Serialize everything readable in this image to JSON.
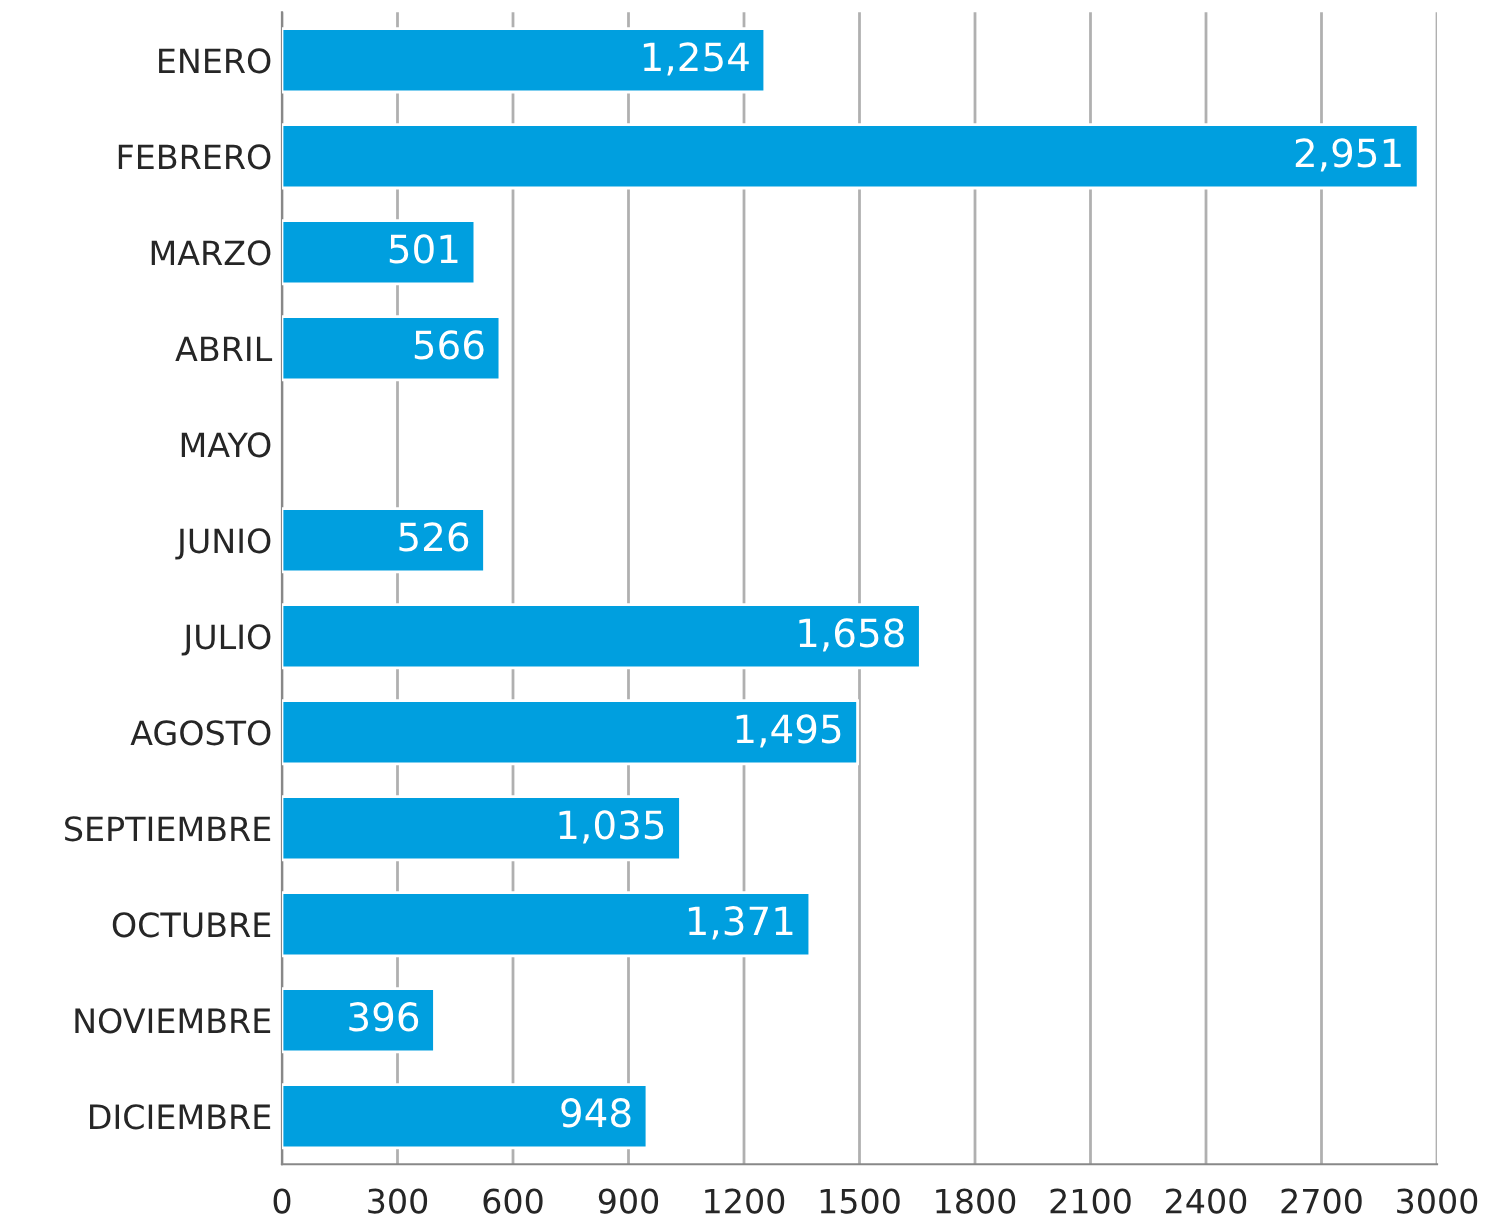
{
  "chart_data": {
    "type": "bar",
    "orientation": "horizontal",
    "categories": [
      "ENERO",
      "FEBRERO",
      "MARZO",
      "ABRIL",
      "MAYO",
      "JUNIO",
      "JULIO",
      "AGOSTO",
      "SEPTIEMBRE",
      "OCTUBRE",
      "NOVIEMBRE",
      "DICIEMBRE"
    ],
    "values": [
      1254,
      2951,
      501,
      566,
      null,
      526,
      1658,
      1495,
      1035,
      1371,
      396,
      948
    ],
    "value_labels": [
      "1,254",
      "2,951",
      "501",
      "566",
      null,
      "526",
      "1,658",
      "1,495",
      "1,035",
      "1,371",
      "396",
      "948"
    ],
    "color": "#009fdf",
    "xlim": [
      0,
      3000
    ],
    "xticks": [
      0,
      300,
      600,
      900,
      1200,
      1500,
      1800,
      2100,
      2400,
      2700,
      3000
    ],
    "grid": "x",
    "legend": false
  }
}
